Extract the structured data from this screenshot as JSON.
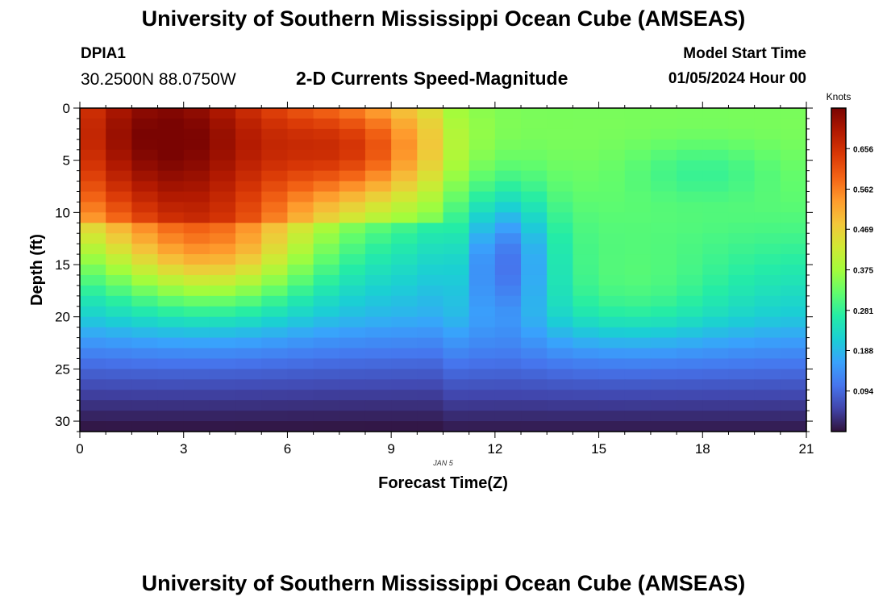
{
  "page": {
    "title_top": "University of Southern Mississippi Ocean Cube (AMSEAS)",
    "title_bottom": "University of Southern Mississippi Ocean Cube (AMSEAS)",
    "station": "DPIA1",
    "coords": "30.2500N  88.0750W",
    "subtitle": "2-D Currents Speed-Magnitude",
    "model_start_label": "Model Start Time",
    "model_start_value": "01/05/2024 Hour 00"
  },
  "chart_data": {
    "type": "heatmap",
    "title": "2-D Currents Speed-Magnitude",
    "xlabel": "Forecast Time(Z)",
    "ylabel": "Depth (ft)",
    "xlim": [
      0,
      21
    ],
    "ylim": [
      31,
      0
    ],
    "x_ticks": [
      0,
      3,
      6,
      9,
      12,
      15,
      18,
      21
    ],
    "y_ticks": [
      0,
      5,
      10,
      15,
      20,
      25,
      30
    ],
    "date_label": "JAN 5",
    "colorbar": {
      "label": "Knots",
      "range": [
        0.0,
        0.75
      ],
      "ticks": [
        "0.094",
        "0.188",
        "0.281",
        "0.375",
        "0.469",
        "0.562",
        "0.656"
      ],
      "colormap": [
        "#30123b",
        "#4145ab",
        "#4675ed",
        "#39a2fc",
        "#1bcfd4",
        "#24eca6",
        "#61fc6c",
        "#a4fc3b",
        "#d1e834",
        "#f3c63a",
        "#fe9b2d",
        "#f36315",
        "#d93806",
        "#b11901",
        "#7a0402"
      ]
    },
    "grid_cols": 28,
    "grid_rows": 31,
    "features": [
      {
        "t": 2.5,
        "d": 3,
        "st": 3.0,
        "sd": 8.0,
        "v": 0.38
      },
      {
        "t": 4.0,
        "d": 14,
        "st": 2.0,
        "sd": 4.0,
        "v": 0.16
      },
      {
        "t": 8.0,
        "d": 4,
        "st": 1.7,
        "sd": 3.5,
        "v": 0.2
      },
      {
        "t": 12.3,
        "d": 14,
        "st": 0.9,
        "sd": 4.5,
        "v": -0.17
      },
      {
        "t": 16.0,
        "d": 18,
        "st": 2.0,
        "sd": 3.5,
        "v": 0.07
      },
      {
        "t": 18.0,
        "d": 6,
        "st": 1.5,
        "sd": 2.0,
        "v": -0.05
      }
    ]
  }
}
